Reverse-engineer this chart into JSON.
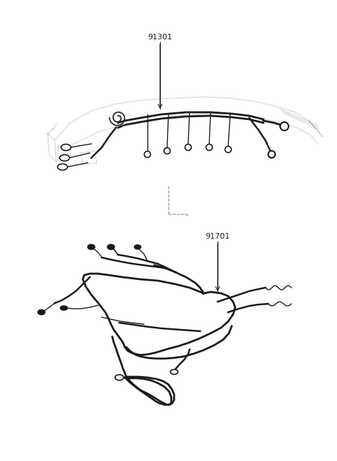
{
  "background_color": "#ffffff",
  "label_91301": "91301",
  "label_91701": "91701",
  "figsize": [
    4.8,
    6.57
  ],
  "dpi": 100,
  "line_color": "#1a1a1a",
  "dashed_color": "#888888",
  "font_size": 8,
  "lw_main": 1.8,
  "lw_thin": 1.1,
  "lw_harness": 2.0
}
